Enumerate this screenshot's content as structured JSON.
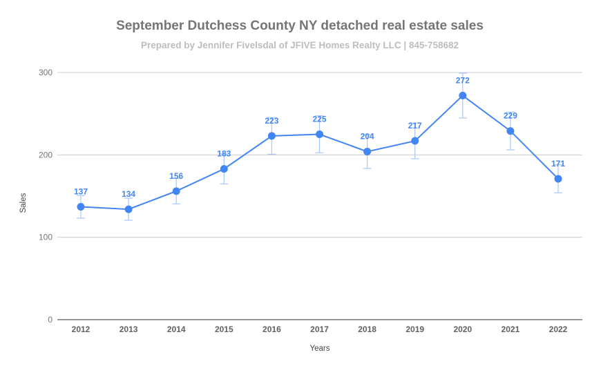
{
  "chart_data": {
    "type": "line",
    "title": "September Dutchess County NY detached real estate sales",
    "subtitle": "Prepared by Jennifer Fivelsdal of JFIVE Homes Realty LLC | 845-758682",
    "xlabel": "Years",
    "ylabel": "Sales",
    "categories": [
      "2012",
      "2013",
      "2014",
      "2015",
      "2016",
      "2017",
      "2018",
      "2019",
      "2020",
      "2021",
      "2022"
    ],
    "series": [
      {
        "name": "Sales",
        "values": [
          137,
          134,
          156,
          183,
          223,
          225,
          204,
          217,
          272,
          229,
          171
        ],
        "error_bars": "±10%",
        "color": "#4285f4"
      }
    ],
    "ylim": [
      0,
      300
    ],
    "yticks": [
      0,
      100,
      200,
      300
    ],
    "grid": true,
    "legend": "none",
    "data_labels": true
  }
}
